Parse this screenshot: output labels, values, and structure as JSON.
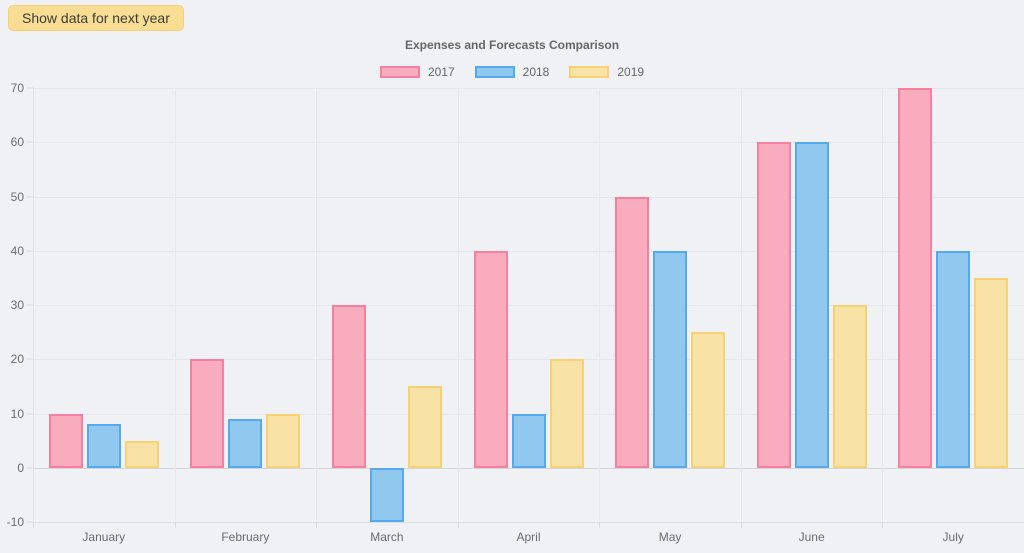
{
  "button": {
    "label": "Show data for next year"
  },
  "chart_data": {
    "type": "bar",
    "title": "Expenses and Forecasts Comparison",
    "categories": [
      "January",
      "February",
      "March",
      "April",
      "May",
      "June",
      "July"
    ],
    "series": [
      {
        "name": "2017",
        "fill": "#f8acbe",
        "border": "#f8809f",
        "values": [
          10,
          20,
          30,
          40,
          50,
          60,
          70
        ]
      },
      {
        "name": "2018",
        "fill": "#90c8f0",
        "border": "#54aaec",
        "values": [
          8,
          9,
          -10,
          10,
          40,
          60,
          40
        ]
      },
      {
        "name": "2019",
        "fill": "#f8e2a6",
        "border": "#f8d172",
        "values": [
          5,
          10,
          15,
          20,
          25,
          30,
          35
        ]
      }
    ],
    "ylim": [
      -10,
      70
    ],
    "yticks": [
      70,
      60,
      50,
      40,
      30,
      20,
      10,
      0,
      -10
    ],
    "grid": true,
    "legend_position": "top-center",
    "xlabel": "",
    "ylabel": ""
  },
  "theme": {
    "page_bg": "#f0f1f5",
    "grid_color": "#e4e6ea",
    "zero_line_color": "#d3d5d9",
    "axis_text_color": "#696b70",
    "title_color": "#666666",
    "button_bg": "#f9dd92",
    "button_text": "#3b3b3b"
  }
}
